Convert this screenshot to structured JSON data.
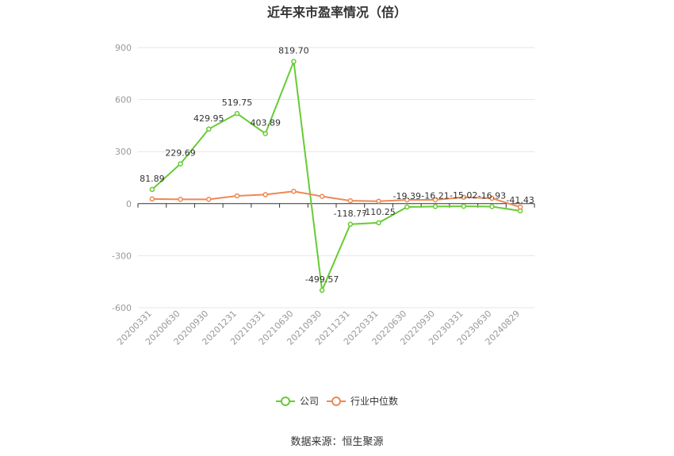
{
  "chart_data": {
    "type": "line",
    "title": "近年来市盈率情况（倍）",
    "categories": [
      "20200331",
      "20200630",
      "20200930",
      "20201231",
      "20210331",
      "20210630",
      "20210930",
      "20211231",
      "20220331",
      "20220630",
      "20220930",
      "20230331",
      "20230630",
      "20240829"
    ],
    "series": [
      {
        "name": "公司",
        "color": "#66cc33",
        "values": [
          81.89,
          229.69,
          429.95,
          519.75,
          403.89,
          819.7,
          -499.57,
          -118.77,
          -110.25,
          -19.39,
          -16.21,
          -15.02,
          -16.93,
          -41.43
        ],
        "labels": [
          "81.89",
          "229.69",
          "429.95",
          "519.75",
          "403.89",
          "819.70",
          "-499.57",
          "-118.77",
          "-110.25",
          "-19.39",
          "-16.21",
          "-15.02",
          "-16.93",
          "-41.43"
        ]
      },
      {
        "name": "行业中位数",
        "color": "#ee8855",
        "values": [
          27,
          25,
          25,
          45,
          52,
          71,
          42,
          17,
          14,
          22,
          22,
          37,
          31,
          -20
        ]
      }
    ],
    "ylim": [
      -600,
      900
    ],
    "yticks": [
      "900",
      "600",
      "300",
      "0",
      "-300",
      "-600"
    ],
    "grid": true,
    "legend": "bottom"
  },
  "footer": {
    "source": "数据来源：恒生聚源"
  }
}
